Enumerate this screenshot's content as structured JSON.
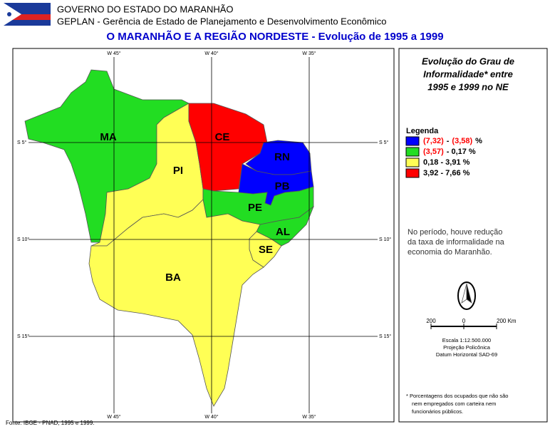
{
  "header": {
    "line1": "GOVERNO DO ESTADO DO MARANHÃO",
    "line2": "GEPLAN - Gerência de Estado de Planejamento e Desenvolvimento Econômico",
    "title": "O MARANHÃO E A REGIÃO NORDESTE - Evolução de 1995 a 1999"
  },
  "map": {
    "grid_labels": {
      "top": [
        "W 45°",
        "W 40°",
        "W 35°"
      ],
      "bottom": [
        "W 45°",
        "W 40°",
        "W 35°"
      ],
      "left": [
        "S 5°",
        "S 10°",
        "S 15°"
      ],
      "right": [
        "S 5°",
        "S 10°",
        "S 15°"
      ]
    },
    "states": [
      {
        "label": "MA",
        "color": "#22dd22"
      },
      {
        "label": "PI",
        "color": "#ffff55"
      },
      {
        "label": "CE",
        "color": "#ff0000"
      },
      {
        "label": "RN",
        "color": "#0000ff"
      },
      {
        "label": "PB",
        "color": "#0000ff"
      },
      {
        "label": "PE",
        "color": "#22dd22"
      },
      {
        "label": "AL",
        "color": "#22dd22"
      },
      {
        "label": "SE",
        "color": "#ffff55"
      },
      {
        "label": "BA",
        "color": "#ffff55"
      }
    ]
  },
  "panel": {
    "title_lines": [
      "Evolução do Grau de",
      "Informalidade* entre",
      "1995 e 1999 no NE"
    ],
    "legend_title": "Legenda",
    "legend": [
      {
        "color": "#0000ff",
        "parts": [
          {
            "text": "(7,32)",
            "color": "#ff0000"
          },
          {
            "text": "-",
            "color": "#000000"
          },
          {
            "text": "(3,58)",
            "color": "#ff0000"
          },
          {
            "text": "%",
            "color": "#000000"
          }
        ]
      },
      {
        "color": "#22dd22",
        "parts": [
          {
            "text": "(3,57)",
            "color": "#ff0000"
          },
          {
            "text": "- 0,17 %",
            "color": "#000000"
          }
        ]
      },
      {
        "color": "#ffff55",
        "parts": [
          {
            "text": "0,18 - 3,91 %",
            "color": "#000000"
          }
        ]
      },
      {
        "color": "#ff0000",
        "parts": [
          {
            "text": "3,92 - 7,66 %",
            "color": "#000000"
          }
        ]
      }
    ],
    "note_lines": [
      "No período, houve redução",
      "da taxa de informalidade na",
      "economia do Maranhão."
    ],
    "scale_labels": [
      "200",
      "0",
      "200 Km"
    ],
    "scale_lines": [
      "Escala 1:12.500.000",
      "Projeção Policônica",
      "Datum Horizontal SAD-69"
    ],
    "footnote_lines": [
      "* Porcentagens dos ocupados que não são",
      "nem empregados com carteira nem",
      "funcionários públicos."
    ]
  },
  "source": "Fonte: IBGE - PNAD, 1995 e 1999."
}
